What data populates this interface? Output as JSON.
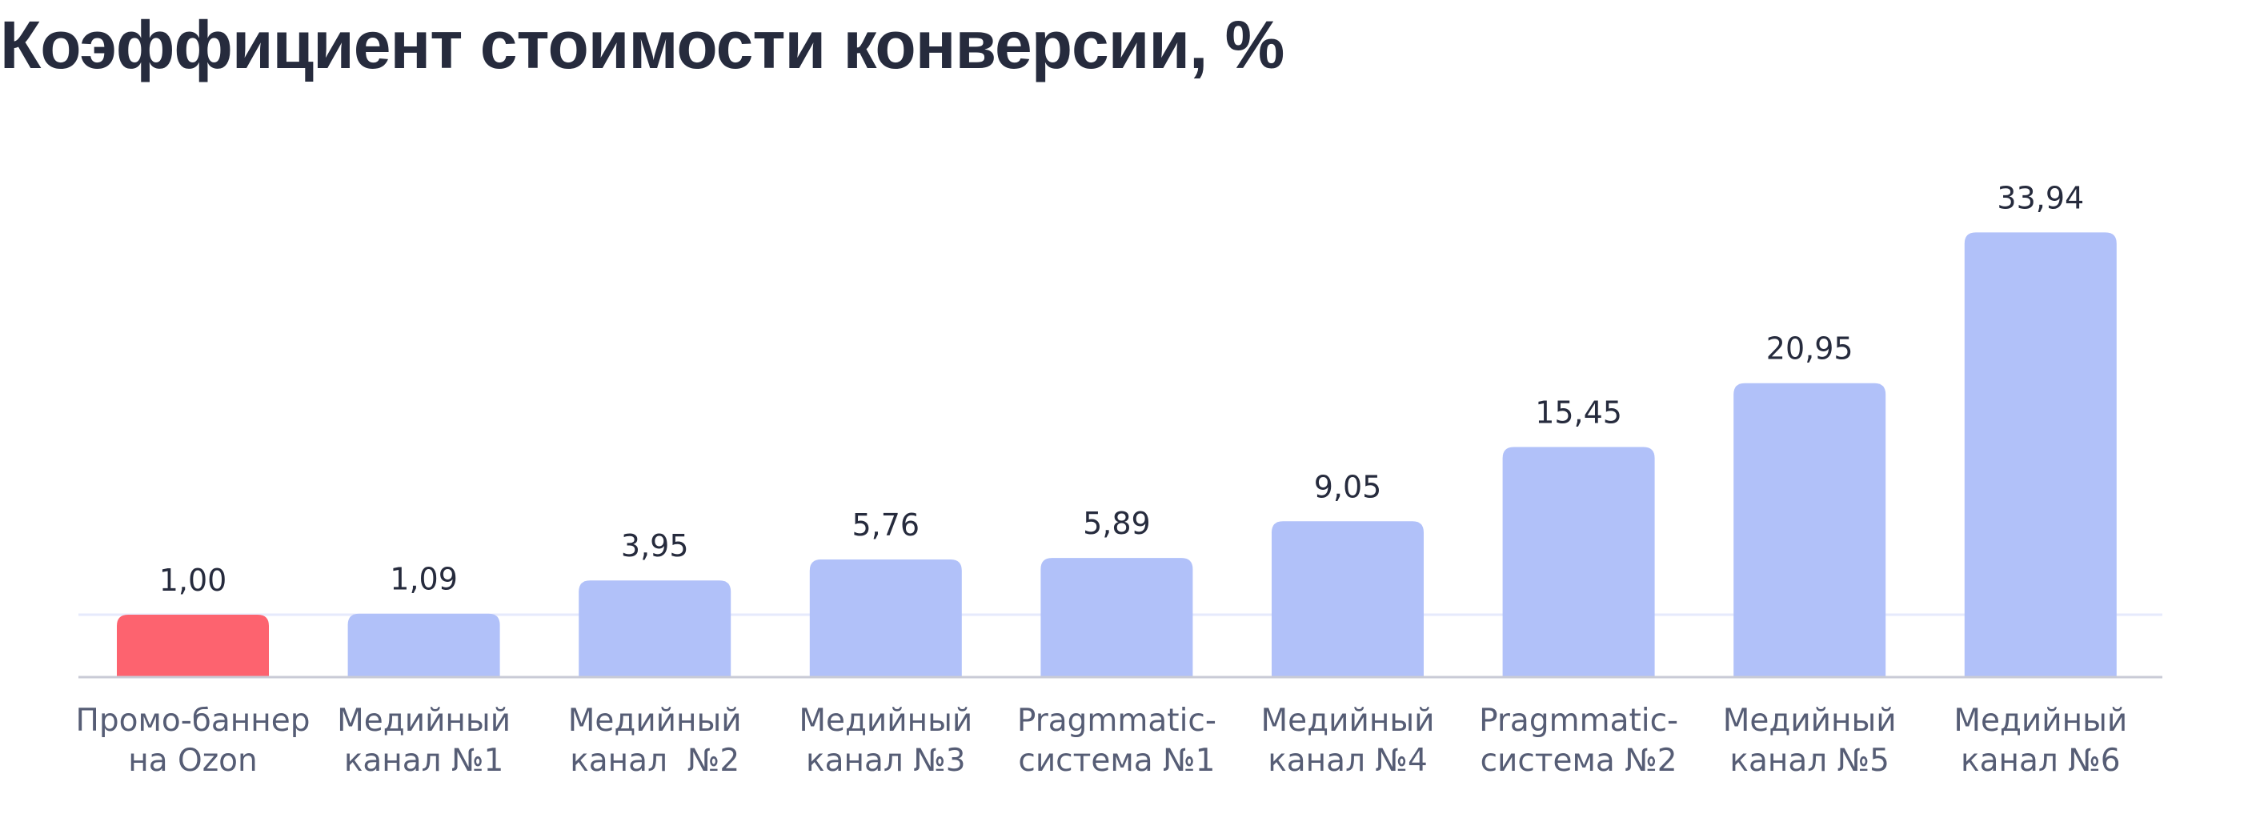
{
  "chart_data": {
    "type": "bar",
    "title": "Коэффициент стоимости конверсии, %",
    "xlabel": "",
    "ylabel": "",
    "categories": [
      [
        "Промо-баннер",
        "на Ozon"
      ],
      [
        "Медийный",
        "канал №1"
      ],
      [
        "Медийный",
        "канал  №2"
      ],
      [
        "Медийный",
        "канал №3"
      ],
      [
        "Pragmmatic-",
        "система №1"
      ],
      [
        "Медийный",
        "канал №4"
      ],
      [
        "Pragmmatic-",
        "система №2"
      ],
      [
        "Медийный",
        "канал №5"
      ],
      [
        "Медийный",
        "канал №6"
      ]
    ],
    "values": [
      1.0,
      1.09,
      3.95,
      5.76,
      5.89,
      9.05,
      15.45,
      20.95,
      33.94
    ],
    "value_labels": [
      "1,00",
      "1,09",
      "3,95",
      "5,76",
      "5,89",
      "9,05",
      "15,45",
      "20,95",
      "33,94"
    ],
    "highlight_index": 0,
    "colors": {
      "highlight": "#fd636f",
      "bar": "#b1c1f9",
      "axis": "#c9cbd6",
      "reference_line": "#e6eafc",
      "title": "#262b3d",
      "value_text": "#262b3d",
      "category_text": "#565d75"
    },
    "reference_line_value": 1.0,
    "ylim": [
      0,
      35
    ],
    "grid": false,
    "legend": "none"
  }
}
